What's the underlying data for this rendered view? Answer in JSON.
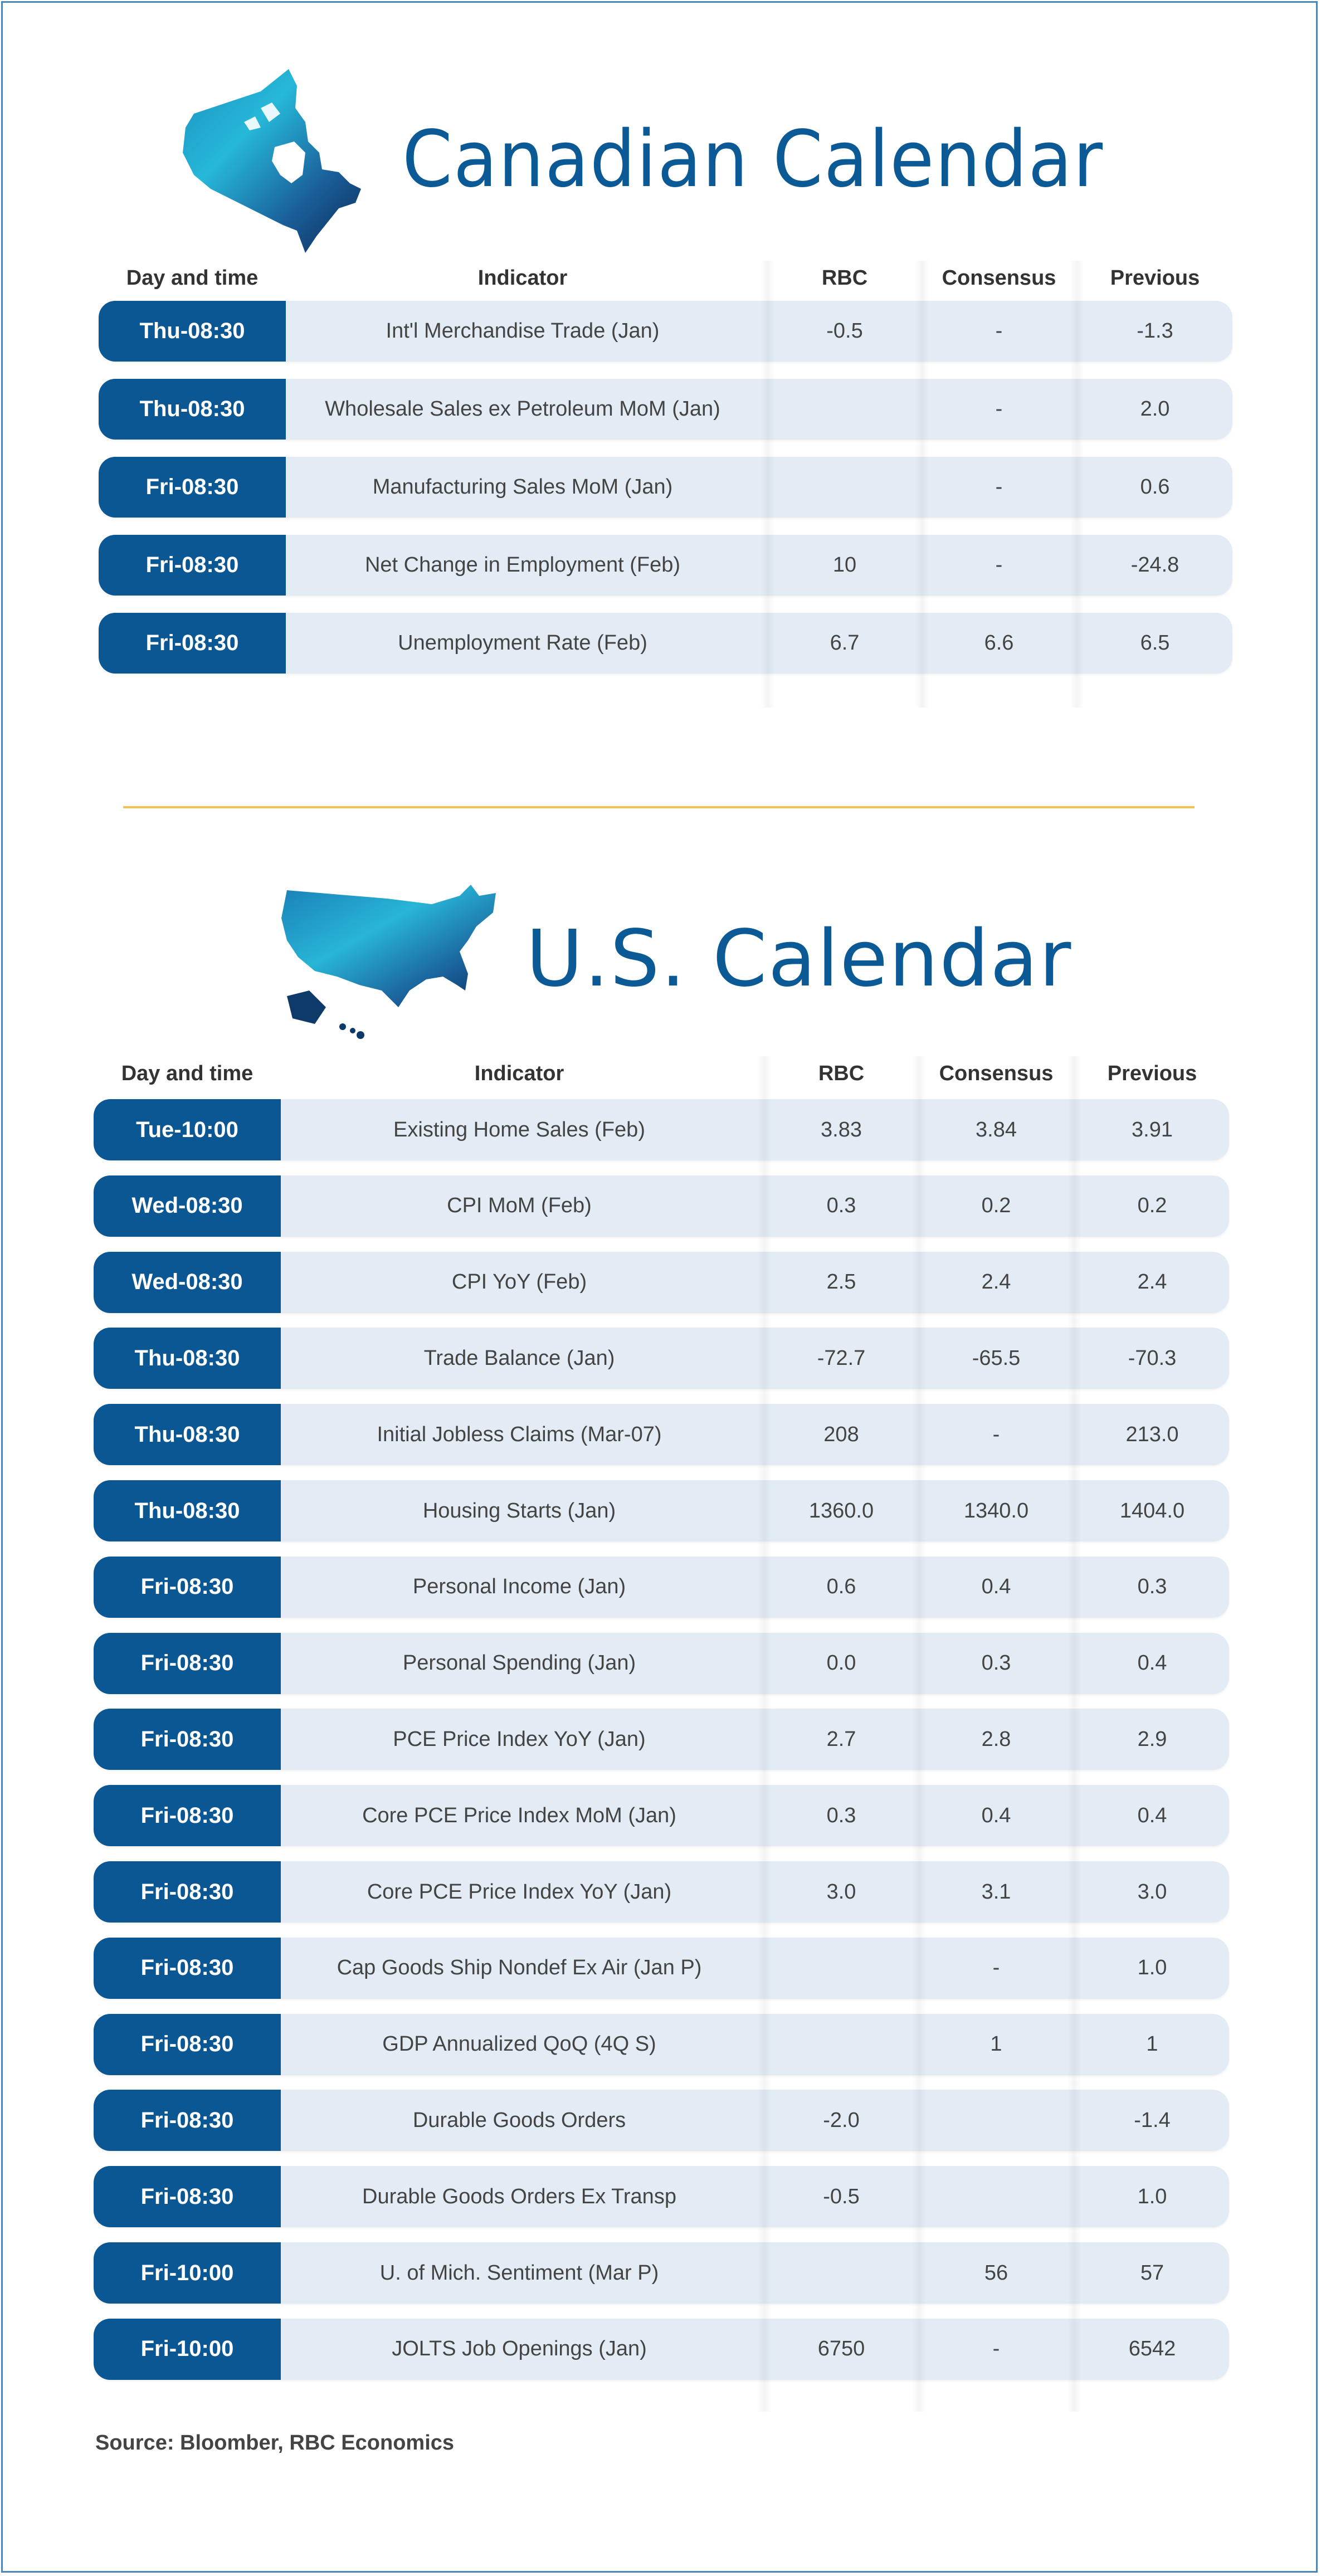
{
  "colors": {
    "brand_blue": "#0b5794",
    "title_blue": "#0b5a96",
    "row_bg": "#e3ecf5",
    "divider_gold": "#f2c14e"
  },
  "canada": {
    "title": "Canadian Calendar",
    "map_icon": "canada-map-icon",
    "headers": {
      "day": "Day and time",
      "indicator": "Indicator",
      "rbc": "RBC",
      "consensus": "Consensus",
      "previous": "Previous"
    },
    "rows": [
      {
        "day": "Thu-08:30",
        "indicator": "Int'l Merchandise Trade (Jan)",
        "rbc": "-0.5",
        "consensus": "-",
        "previous": "-1.3"
      },
      {
        "day": "Thu-08:30",
        "indicator": "Wholesale Sales ex Petroleum MoM (Jan)",
        "rbc": "",
        "consensus": "-",
        "previous": "2.0"
      },
      {
        "day": "Fri-08:30",
        "indicator": "Manufacturing Sales MoM (Jan)",
        "rbc": "",
        "consensus": "-",
        "previous": "0.6"
      },
      {
        "day": "Fri-08:30",
        "indicator": "Net Change in Employment (Feb)",
        "rbc": "10",
        "consensus": "-",
        "previous": "-24.8"
      },
      {
        "day": "Fri-08:30",
        "indicator": "Unemployment Rate (Feb)",
        "rbc": "6.7",
        "consensus": "6.6",
        "previous": "6.5"
      }
    ]
  },
  "us": {
    "title": "U.S. Calendar",
    "map_icon": "us-map-icon",
    "headers": {
      "day": "Day and time",
      "indicator": "Indicator",
      "rbc": "RBC",
      "consensus": "Consensus",
      "previous": "Previous"
    },
    "rows": [
      {
        "day": "Tue-10:00",
        "indicator": "Existing Home Sales (Feb)",
        "rbc": "3.83",
        "consensus": "3.84",
        "previous": "3.91"
      },
      {
        "day": "Wed-08:30",
        "indicator": "CPI MoM (Feb)",
        "rbc": "0.3",
        "consensus": "0.2",
        "previous": "0.2"
      },
      {
        "day": "Wed-08:30",
        "indicator": "CPI YoY (Feb)",
        "rbc": "2.5",
        "consensus": "2.4",
        "previous": "2.4"
      },
      {
        "day": "Thu-08:30",
        "indicator": "Trade Balance (Jan)",
        "rbc": "-72.7",
        "consensus": "-65.5",
        "previous": "-70.3"
      },
      {
        "day": "Thu-08:30",
        "indicator": "Initial Jobless Claims (Mar-07)",
        "rbc": "208",
        "consensus": "-",
        "previous": "213.0"
      },
      {
        "day": "Thu-08:30",
        "indicator": "Housing Starts (Jan)",
        "rbc": "1360.0",
        "consensus": "1340.0",
        "previous": "1404.0"
      },
      {
        "day": "Fri-08:30",
        "indicator": "Personal Income (Jan)",
        "rbc": "0.6",
        "consensus": "0.4",
        "previous": "0.3"
      },
      {
        "day": "Fri-08:30",
        "indicator": "Personal Spending (Jan)",
        "rbc": "0.0",
        "consensus": "0.3",
        "previous": "0.4"
      },
      {
        "day": "Fri-08:30",
        "indicator": "PCE Price Index YoY (Jan)",
        "rbc": "2.7",
        "consensus": "2.8",
        "previous": "2.9"
      },
      {
        "day": "Fri-08:30",
        "indicator": "Core PCE Price Index MoM (Jan)",
        "rbc": "0.3",
        "consensus": "0.4",
        "previous": "0.4"
      },
      {
        "day": "Fri-08:30",
        "indicator": "Core PCE Price Index YoY (Jan)",
        "rbc": "3.0",
        "consensus": "3.1",
        "previous": "3.0"
      },
      {
        "day": "Fri-08:30",
        "indicator": "Cap Goods Ship Nondef Ex Air (Jan P)",
        "rbc": "",
        "consensus": "-",
        "previous": "1.0"
      },
      {
        "day": "Fri-08:30",
        "indicator": "GDP Annualized QoQ (4Q S)",
        "rbc": "",
        "consensus": "1",
        "previous": "1"
      },
      {
        "day": "Fri-08:30",
        "indicator": "Durable Goods Orders",
        "rbc": "-2.0",
        "consensus": "",
        "previous": "-1.4"
      },
      {
        "day": "Fri-08:30",
        "indicator": "Durable Goods Orders Ex Transp",
        "rbc": "-0.5",
        "consensus": "",
        "previous": "1.0"
      },
      {
        "day": "Fri-10:00",
        "indicator": "U. of Mich. Sentiment (Mar P)",
        "rbc": "",
        "consensus": "56",
        "previous": "57"
      },
      {
        "day": "Fri-10:00",
        "indicator": "JOLTS Job Openings (Jan)",
        "rbc": "6750",
        "consensus": "-",
        "previous": "6542"
      }
    ]
  },
  "source": "Source: Bloomber, RBC Economics"
}
